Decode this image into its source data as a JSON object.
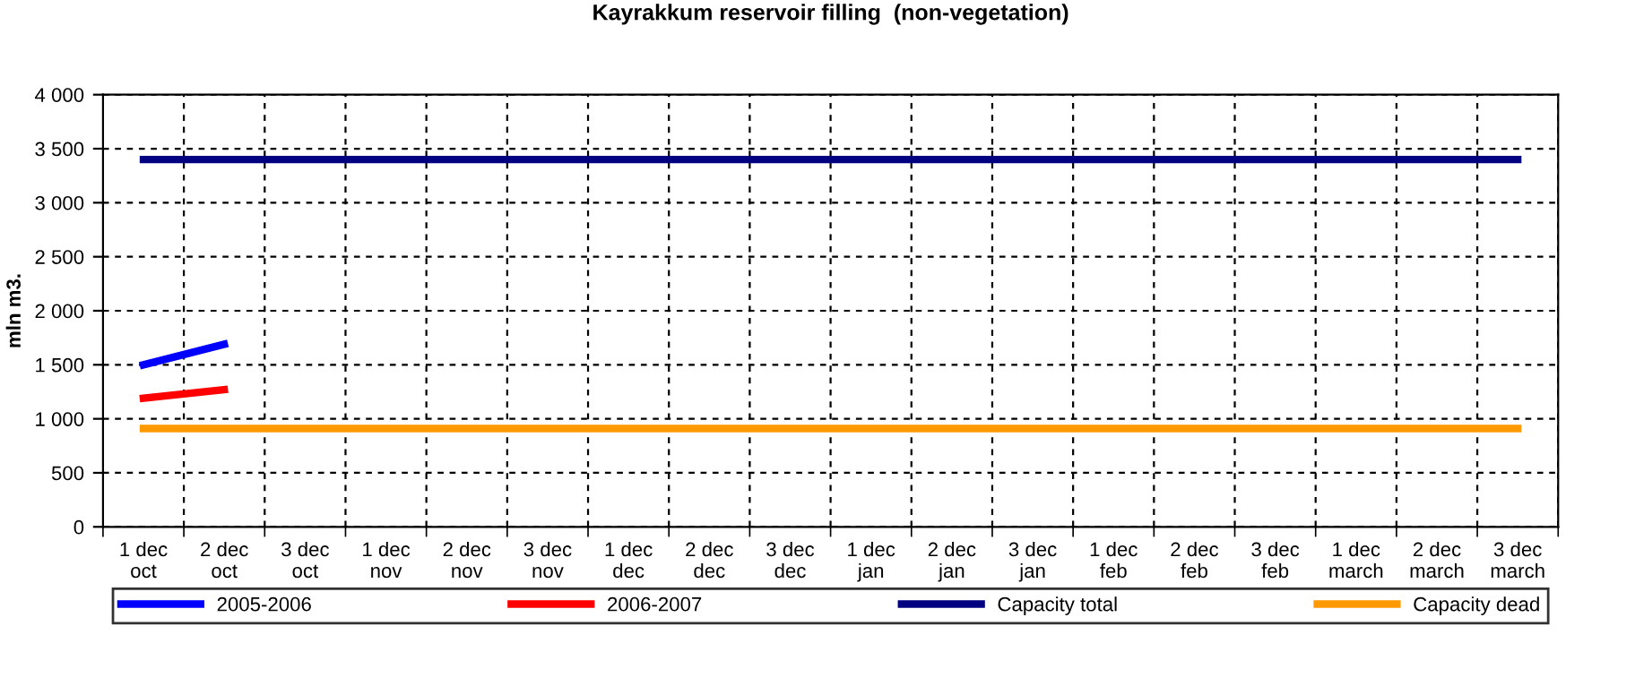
{
  "chart_data": {
    "type": "line",
    "title": "Kayrakkum reservoir filling  (non-vegetation)",
    "ylabel": "mln m3.",
    "categories": [
      "1 dec\noct",
      "2 dec\noct",
      "3 dec\noct",
      "1 dec\nnov",
      "2 dec\nnov",
      "3 dec\nnov",
      "1 dec\ndec",
      "2 dec\ndec",
      "3 dec\ndec",
      "1 dec\njan",
      "2 dec\njan",
      "3 dec\njan",
      "1 dec\nfeb",
      "2 dec\nfeb",
      "3 dec\nfeb",
      "1 dec\nmarch",
      "2 dec\nmarch",
      "3 dec\nmarch"
    ],
    "series": [
      {
        "name": "2005-2006",
        "color": "#0000ff",
        "values": [
          1500,
          1690,
          null,
          null,
          null,
          null,
          null,
          null,
          null,
          null,
          null,
          null,
          null,
          null,
          null,
          null,
          null,
          null
        ]
      },
      {
        "name": "2006-2007",
        "color": "#ff0000",
        "values": [
          1190,
          1270,
          null,
          null,
          null,
          null,
          null,
          null,
          null,
          null,
          null,
          null,
          null,
          null,
          null,
          null,
          null,
          null
        ]
      },
      {
        "name": "Capacity total",
        "color": "#000080",
        "values": [
          3400,
          3400,
          3400,
          3400,
          3400,
          3400,
          3400,
          3400,
          3400,
          3400,
          3400,
          3400,
          3400,
          3400,
          3400,
          3400,
          3400,
          3400
        ]
      },
      {
        "name": "Capacity dead",
        "color": "#ff9900",
        "values": [
          910,
          910,
          910,
          910,
          910,
          910,
          910,
          910,
          910,
          910,
          910,
          910,
          910,
          910,
          910,
          910,
          910,
          910
        ]
      }
    ],
    "ylim": [
      0,
      4000
    ],
    "yticks": [
      0,
      500,
      {
        "value": 1000,
        "label": "1 000"
      },
      {
        "value": 1500,
        "label": "1 500"
      },
      {
        "value": 2000,
        "label": "2 000"
      },
      {
        "value": 2500,
        "label": "2 500"
      },
      {
        "value": 3000,
        "label": "3 000"
      },
      {
        "value": 3500,
        "label": "3 500"
      },
      {
        "value": 4000,
        "label": "4 000"
      }
    ],
    "grid": true,
    "legend": "bottom",
    "marker": "none",
    "line_style": "solid"
  }
}
